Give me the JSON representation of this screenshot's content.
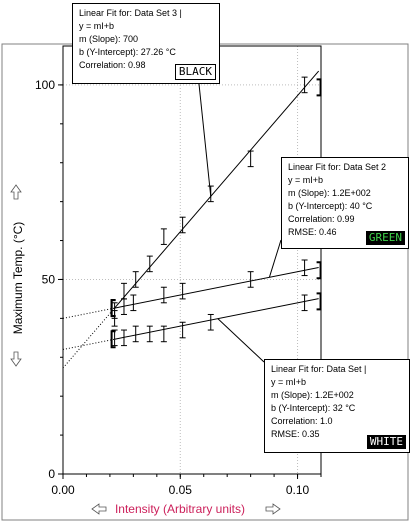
{
  "chart_data": {
    "type": "scatter",
    "xlabel": "Intensity (Arbitrary units)",
    "ylabel": "Maximum Temp. (°C)",
    "xlim": [
      0,
      0.11
    ],
    "ylim": [
      0,
      110
    ],
    "x_ticks": [
      "0.00",
      "0.05",
      "0.10"
    ],
    "y_ticks": [
      "0",
      "50",
      "100"
    ],
    "grid": true,
    "series": [
      {
        "tag": "BLACK",
        "x": [
          0.022,
          0.026,
          0.031,
          0.037,
          0.043,
          0.051,
          0.063,
          0.08,
          0.103
        ],
        "y": [
          42,
          47,
          50,
          54,
          61,
          64,
          72,
          81,
          100
        ],
        "fit": {
          "m": 700,
          "b": 27.26,
          "x_from": 0,
          "x_to": 0.109
        }
      },
      {
        "tag": "GREEN",
        "x": [
          0.022,
          0.026,
          0.03,
          0.043,
          0.051,
          0.08,
          0.103
        ],
        "y": [
          40,
          43,
          44,
          46,
          47,
          50,
          53
        ],
        "fit": {
          "m": 120,
          "b": 40,
          "x_from": 0.0,
          "x_to": 0.109
        }
      },
      {
        "tag": "WHITE",
        "x": [
          0.022,
          0.026,
          0.031,
          0.037,
          0.043,
          0.051,
          0.063,
          0.103
        ],
        "y": [
          35,
          35,
          36,
          36,
          36,
          37,
          39,
          44
        ],
        "fit": {
          "m": 120,
          "b": 32,
          "x_from": 0.0,
          "x_to": 0.109
        }
      }
    ],
    "error_bar": 2,
    "fit_boxes": [
      {
        "title": "Linear Fit for:  Data Set 3 |",
        "eq": "y = mI+b",
        "slope": "m (Slope): 700",
        "intercept": "b (Y-Intercept): 27.26 °C",
        "correlation": "Correlation: 0.98",
        "rmse": "",
        "tag": "BLACK"
      },
      {
        "title": "Linear Fit for:  Data Set 2",
        "eq": "y = mI+b",
        "slope": "m (Slope): 1.2E+002",
        "intercept": "b (Y-Intercept): 40 °C",
        "correlation": "Correlation: 0.99",
        "rmse": "RMSE: 0.46",
        "tag": "GREEN"
      },
      {
        "title": "Linear Fit for:  Data Set |",
        "eq": "y = mI+b",
        "slope": "m (Slope): 1.2E+002",
        "intercept": "b (Y-Intercept): 32 °C",
        "correlation": "Correlation: 1.0",
        "rmse": "RMSE: 0.35",
        "tag": "WHITE"
      }
    ]
  },
  "colors": {
    "xlabel": "#cc1f5a",
    "grid": "#bdbdbd",
    "tag_green_bg": "#000000",
    "tag_green_fg": "#3fd24a",
    "tag_white_bg": "#000000",
    "tag_white_fg": "#ffffff"
  },
  "icons": {
    "x_left": "arrow-left-icon",
    "x_right": "arrow-right-icon",
    "y_up": "arrow-up-icon",
    "y_down": "arrow-down-icon"
  }
}
